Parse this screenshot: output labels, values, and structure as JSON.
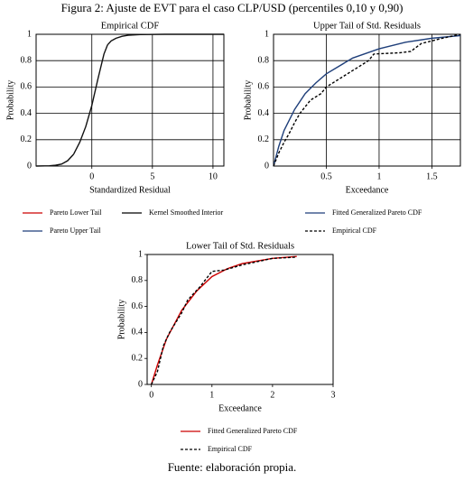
{
  "title": "Figura 2: Ajuste de EVT para el caso CLP/USD (percentiles 0,10 y 0,90)",
  "source": "Fuente: elaboración propia.",
  "chart_data": [
    {
      "type": "line",
      "title": "Empirical CDF",
      "xlabel": "Standardized Residual",
      "ylabel": "Probability",
      "xlim": [
        -4.6,
        10.9
      ],
      "ylim": [
        0,
        1
      ],
      "xticks": [
        0,
        5,
        10
      ],
      "yticks": [
        0,
        0.2,
        0.4,
        0.6,
        0.8,
        1
      ],
      "grid": true,
      "series": [
        {
          "name": "Pareto Lower Tail",
          "color": "#111111",
          "linestyle": "solid",
          "x": [
            -4.6,
            -3.5,
            -3,
            -2.5,
            -2,
            -1.5
          ],
          "values": [
            0,
            0.002,
            0.006,
            0.015,
            0.04,
            0.09
          ]
        },
        {
          "name": "Kernel Smoothed Interior",
          "color": "#111111",
          "linestyle": "solid",
          "x": [
            -1.5,
            -1,
            -0.5,
            0,
            0.5,
            1,
            1.3
          ],
          "values": [
            0.09,
            0.18,
            0.3,
            0.46,
            0.66,
            0.85,
            0.92
          ]
        },
        {
          "name": "Pareto Upper Tail",
          "color": "#111111",
          "linestyle": "solid",
          "x": [
            1.3,
            1.6,
            2,
            2.5,
            3,
            4,
            6,
            8,
            10.9
          ],
          "values": [
            0.92,
            0.95,
            0.97,
            0.985,
            0.993,
            0.998,
            1,
            1,
            1
          ]
        }
      ],
      "legend_colors": [
        "#cc0000",
        "#000000",
        "#1f3f7a"
      ]
    },
    {
      "type": "line",
      "title": "Upper Tail of Std. Residuals",
      "xlabel": "Exceedance",
      "ylabel": "Probability",
      "xlim": [
        0,
        1.77
      ],
      "ylim": [
        0,
        1
      ],
      "xticks": [
        0.5,
        1,
        1.5
      ],
      "yticks": [
        0,
        0.2,
        0.4,
        0.6,
        0.8,
        1
      ],
      "grid": true,
      "series": [
        {
          "name": "Fitted Generalized Pareto CDF",
          "color": "#1f3f7a",
          "linestyle": "solid",
          "x": [
            0,
            0.05,
            0.1,
            0.2,
            0.3,
            0.4,
            0.5,
            0.75,
            1,
            1.25,
            1.5,
            1.77
          ],
          "values": [
            0,
            0.15,
            0.27,
            0.43,
            0.55,
            0.63,
            0.7,
            0.82,
            0.89,
            0.94,
            0.97,
            0.99
          ]
        },
        {
          "name": "Empirical CDF",
          "color": "#000000",
          "linestyle": "dashed",
          "x": [
            0,
            0.05,
            0.1,
            0.15,
            0.2,
            0.25,
            0.3,
            0.35,
            0.45,
            0.5,
            0.6,
            0.7,
            0.8,
            0.9,
            0.95,
            1.2,
            1.3,
            1.4,
            1.5,
            1.6,
            1.77
          ],
          "values": [
            0,
            0.1,
            0.18,
            0.25,
            0.33,
            0.4,
            0.45,
            0.5,
            0.55,
            0.6,
            0.65,
            0.7,
            0.75,
            0.8,
            0.85,
            0.86,
            0.87,
            0.93,
            0.95,
            0.97,
            1
          ]
        }
      ]
    },
    {
      "type": "line",
      "title": "Lower Tail of Std. Residuals",
      "xlabel": "Exceedance",
      "ylabel": "Probability",
      "xlim": [
        -0.07,
        3
      ],
      "ylim": [
        0,
        1
      ],
      "xticks": [
        0,
        1,
        2,
        3
      ],
      "yticks": [
        0,
        0.2,
        0.4,
        0.6,
        0.8,
        1
      ],
      "grid": false,
      "series": [
        {
          "name": "Fitted Generalized Pareto CDF",
          "color": "#cc0000",
          "linestyle": "solid",
          "x": [
            0,
            0.1,
            0.25,
            0.5,
            0.75,
            1,
            1.25,
            1.5,
            2,
            2.4
          ],
          "values": [
            0,
            0.15,
            0.35,
            0.57,
            0.72,
            0.83,
            0.89,
            0.93,
            0.97,
            0.985
          ]
        },
        {
          "name": "Empirical CDF",
          "color": "#000000",
          "linestyle": "dashed",
          "x": [
            0,
            0.1,
            0.2,
            0.3,
            0.5,
            0.6,
            0.8,
            1,
            1.2,
            1.5,
            1.8,
            2,
            2.4
          ],
          "values": [
            0,
            0.1,
            0.3,
            0.4,
            0.55,
            0.65,
            0.75,
            0.87,
            0.88,
            0.92,
            0.95,
            0.97,
            0.98
          ]
        }
      ]
    }
  ]
}
